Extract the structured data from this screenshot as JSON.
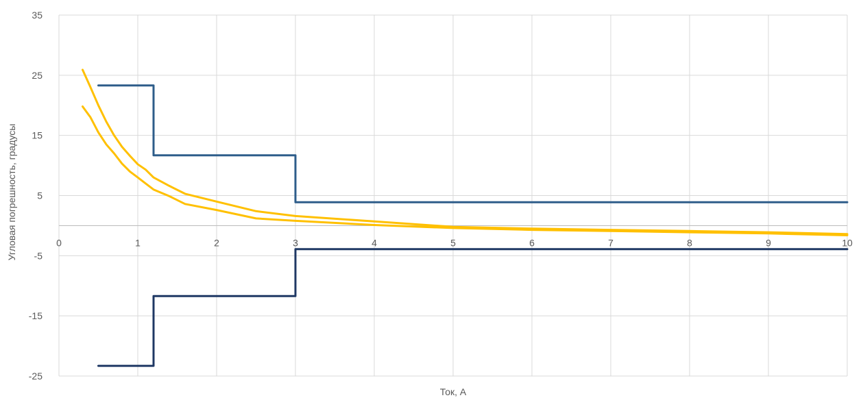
{
  "chart_data": {
    "type": "line",
    "title": "",
    "xlabel": "Ток, А",
    "ylabel": "Угловая погрешность, градусы",
    "xlim": [
      0,
      10
    ],
    "ylim": [
      -25,
      35
    ],
    "x_ticks": [
      0,
      1,
      2,
      3,
      4,
      5,
      6,
      7,
      8,
      9,
      10
    ],
    "y_ticks": [
      35,
      25,
      15,
      5,
      -5,
      -15,
      -25
    ],
    "grid": true,
    "legend": "none",
    "series": [
      {
        "color": "#2E5D8A",
        "step": true,
        "x": [
          0.5,
          1.2,
          1.2,
          3,
          3,
          10
        ],
        "y": [
          23.3,
          23.3,
          11.7,
          11.7,
          3.9,
          3.9
        ]
      },
      {
        "color": "#1F3864",
        "step": true,
        "x": [
          0.5,
          1.2,
          1.2,
          3,
          3,
          10
        ],
        "y": [
          -23.3,
          -23.3,
          -11.7,
          -11.7,
          -3.9,
          -3.9
        ]
      },
      {
        "color": "#FFC000",
        "x": [
          0.3,
          0.4,
          0.5,
          0.6,
          0.7,
          0.8,
          0.9,
          1.0,
          1.1,
          1.2,
          1.4,
          1.6,
          2.0,
          2.5,
          3.0,
          4.0,
          5.0,
          6.0,
          7.0,
          8.0,
          9.0,
          10.0
        ],
        "y": [
          25.9,
          23.0,
          20.0,
          17.3,
          15.0,
          13.1,
          11.6,
          10.2,
          9.3,
          8.0,
          6.6,
          5.3,
          4.0,
          2.4,
          1.6,
          0.7,
          -0.2,
          -0.5,
          -0.7,
          -0.9,
          -1.1,
          -1.4
        ]
      },
      {
        "color": "#FFC000",
        "x": [
          0.3,
          0.4,
          0.5,
          0.6,
          0.7,
          0.8,
          0.9,
          1.0,
          1.1,
          1.2,
          1.4,
          1.6,
          2.0,
          2.5,
          3.0,
          4.0,
          5.0,
          6.0,
          7.0,
          8.0,
          9.0,
          10.0
        ],
        "y": [
          19.8,
          18.0,
          15.5,
          13.5,
          12.0,
          10.3,
          9.0,
          8.0,
          7.0,
          6.0,
          4.9,
          3.6,
          2.6,
          1.2,
          0.8,
          0.1,
          -0.4,
          -0.7,
          -0.9,
          -1.1,
          -1.3,
          -1.6
        ]
      }
    ]
  }
}
